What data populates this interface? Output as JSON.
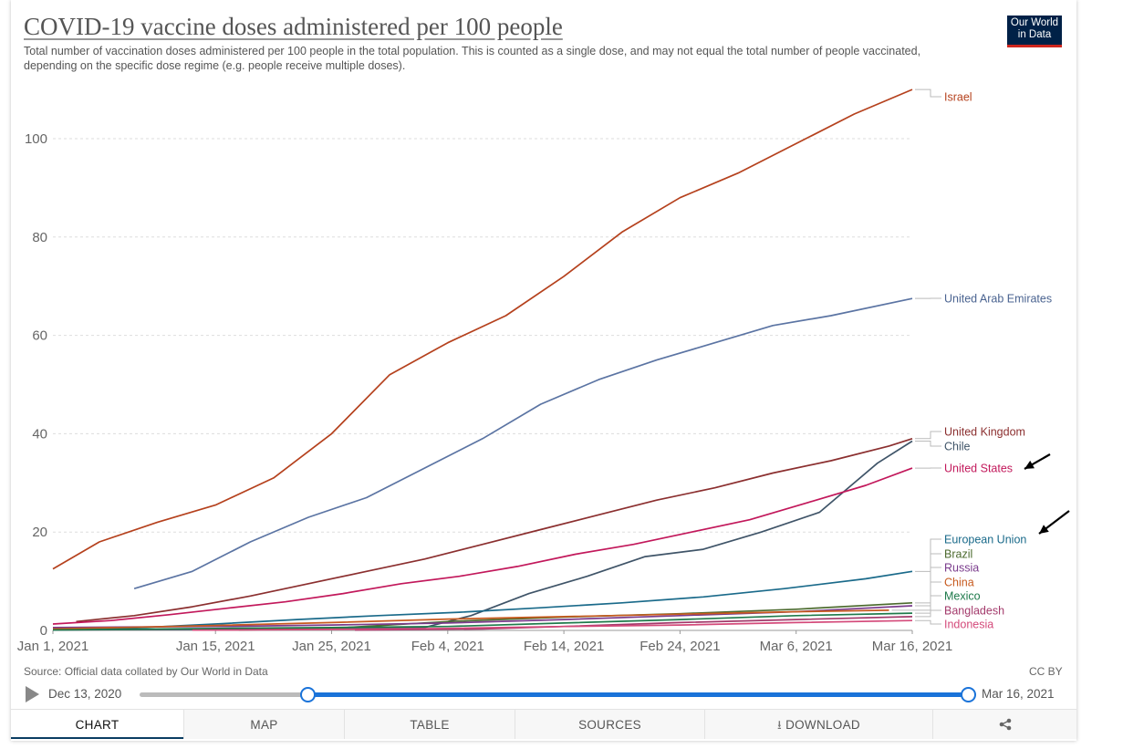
{
  "header": {
    "title": "COVID-19 vaccine doses administered per 100 people",
    "subtitle": "Total number of vaccination doses administered per 100 people in the total population. This is counted as a single dose, and may not equal the total number of people vaccinated, depending on the specific dose regime (e.g. people receive multiple doses).",
    "logo_line1": "Our World",
    "logo_line2": "in Data"
  },
  "footer": {
    "source": "Source: Official data collated by Our World in Data",
    "license": "CC BY"
  },
  "timeline": {
    "start_label": "Dec 13, 2020",
    "end_label": "Mar 16, 2021",
    "selected_start_fraction": 0.203,
    "selected_end_fraction": 1.0
  },
  "tabs": [
    "CHART",
    "MAP",
    "TABLE",
    "SOURCES",
    "DOWNLOAD",
    ""
  ],
  "active_tab": "CHART",
  "icons": {
    "download": "download-icon",
    "share": "share-icon",
    "play": "play-icon",
    "arrow": "arrow-annotation-icon"
  },
  "chart_data": {
    "type": "line",
    "title": "COVID-19 vaccine doses administered per 100 people",
    "xlabel": "",
    "ylabel": "",
    "x_ticks": [
      "Jan 1, 2021",
      "Jan 15, 2021",
      "Jan 25, 2021",
      "Feb 4, 2021",
      "Feb 14, 2021",
      "Feb 24, 2021",
      "Mar 6, 2021",
      "Mar 16, 2021"
    ],
    "xlim": [
      "2021-01-01",
      "2021-03-16"
    ],
    "ylim": [
      0,
      110
    ],
    "y_ticks": [
      0,
      20,
      40,
      60,
      80,
      100
    ],
    "grid": "horizontal dashed",
    "legend": "right-side line labels",
    "series": [
      {
        "name": "Israel",
        "color": "#b5411d",
        "points": [
          [
            "2021-01-01",
            12.5
          ],
          [
            "2021-01-05",
            18
          ],
          [
            "2021-01-10",
            22
          ],
          [
            "2021-01-15",
            25.5
          ],
          [
            "2021-01-20",
            31
          ],
          [
            "2021-01-25",
            40
          ],
          [
            "2021-01-30",
            52
          ],
          [
            "2021-02-04",
            58.5
          ],
          [
            "2021-02-09",
            64
          ],
          [
            "2021-02-14",
            72
          ],
          [
            "2021-02-19",
            81
          ],
          [
            "2021-02-24",
            88
          ],
          [
            "2021-03-01",
            93
          ],
          [
            "2021-03-06",
            99
          ],
          [
            "2021-03-11",
            105
          ],
          [
            "2021-03-16",
            110
          ]
        ]
      },
      {
        "name": "United Arab Emirates",
        "color": "#5b74a3",
        "points": [
          [
            "2021-01-08",
            8.5
          ],
          [
            "2021-01-13",
            12
          ],
          [
            "2021-01-18",
            18
          ],
          [
            "2021-01-23",
            23
          ],
          [
            "2021-01-28",
            27
          ],
          [
            "2021-02-02",
            33
          ],
          [
            "2021-02-07",
            39
          ],
          [
            "2021-02-12",
            46
          ],
          [
            "2021-02-17",
            51
          ],
          [
            "2021-02-22",
            55
          ],
          [
            "2021-02-27",
            58.5
          ],
          [
            "2021-03-04",
            62
          ],
          [
            "2021-03-09",
            64
          ],
          [
            "2021-03-16",
            67.5
          ]
        ]
      },
      {
        "name": "United Kingdom",
        "color": "#8b2f2f",
        "points": [
          [
            "2021-01-03",
            1.8
          ],
          [
            "2021-01-08",
            3
          ],
          [
            "2021-01-13",
            4.8
          ],
          [
            "2021-01-18",
            7
          ],
          [
            "2021-01-23",
            9.5
          ],
          [
            "2021-01-28",
            12
          ],
          [
            "2021-02-02",
            14.5
          ],
          [
            "2021-02-07",
            17.5
          ],
          [
            "2021-02-12",
            20.5
          ],
          [
            "2021-02-17",
            23.5
          ],
          [
            "2021-02-22",
            26.5
          ],
          [
            "2021-02-27",
            29
          ],
          [
            "2021-03-04",
            32
          ],
          [
            "2021-03-09",
            34.5
          ],
          [
            "2021-03-14",
            37.5
          ],
          [
            "2021-03-16",
            39
          ]
        ]
      },
      {
        "name": "Chile",
        "color": "#3f5468",
        "points": [
          [
            "2021-01-01",
            0.1
          ],
          [
            "2021-01-20",
            0.3
          ],
          [
            "2021-02-02",
            0.6
          ],
          [
            "2021-02-06",
            3
          ],
          [
            "2021-02-11",
            7.5
          ],
          [
            "2021-02-16",
            11
          ],
          [
            "2021-02-21",
            15
          ],
          [
            "2021-02-26",
            16.5
          ],
          [
            "2021-03-03",
            20
          ],
          [
            "2021-03-08",
            24
          ],
          [
            "2021-03-13",
            34
          ],
          [
            "2021-03-16",
            38.5
          ]
        ]
      },
      {
        "name": "United States",
        "color": "#c2185b",
        "points": [
          [
            "2021-01-01",
            1.3
          ],
          [
            "2021-01-06",
            2
          ],
          [
            "2021-01-11",
            3.2
          ],
          [
            "2021-01-16",
            4.5
          ],
          [
            "2021-01-21",
            5.8
          ],
          [
            "2021-01-26",
            7.5
          ],
          [
            "2021-01-31",
            9.5
          ],
          [
            "2021-02-05",
            11
          ],
          [
            "2021-02-10",
            13
          ],
          [
            "2021-02-15",
            15.5
          ],
          [
            "2021-02-20",
            17.5
          ],
          [
            "2021-02-25",
            20
          ],
          [
            "2021-03-02",
            22.5
          ],
          [
            "2021-03-07",
            26
          ],
          [
            "2021-03-12",
            29.5
          ],
          [
            "2021-03-16",
            33
          ]
        ]
      },
      {
        "name": "European Union",
        "color": "#1a6a8a",
        "points": [
          [
            "2021-01-01",
            0.2
          ],
          [
            "2021-01-08",
            0.5
          ],
          [
            "2021-01-15",
            1.3
          ],
          [
            "2021-01-22",
            2.2
          ],
          [
            "2021-01-29",
            3
          ],
          [
            "2021-02-05",
            3.7
          ],
          [
            "2021-02-12",
            4.6
          ],
          [
            "2021-02-19",
            5.6
          ],
          [
            "2021-02-26",
            6.8
          ],
          [
            "2021-03-05",
            8.5
          ],
          [
            "2021-03-12",
            10.5
          ],
          [
            "2021-03-16",
            12
          ]
        ]
      },
      {
        "name": "Brazil",
        "color": "#4c6a2e",
        "points": [
          [
            "2021-01-17",
            0.1
          ],
          [
            "2021-01-25",
            0.4
          ],
          [
            "2021-02-04",
            1.8
          ],
          [
            "2021-02-14",
            2.7
          ],
          [
            "2021-02-24",
            3.4
          ],
          [
            "2021-03-06",
            4.3
          ],
          [
            "2021-03-16",
            5.6
          ]
        ]
      },
      {
        "name": "Russia",
        "color": "#7a3b8c",
        "points": [
          [
            "2021-01-01",
            0.6
          ],
          [
            "2021-01-15",
            0.8
          ],
          [
            "2021-01-25",
            1.1
          ],
          [
            "2021-02-04",
            1.5
          ],
          [
            "2021-02-14",
            2.2
          ],
          [
            "2021-02-24",
            3
          ],
          [
            "2021-03-06",
            3.8
          ],
          [
            "2021-03-16",
            5
          ]
        ]
      },
      {
        "name": "China",
        "color": "#c75a1e",
        "points": [
          [
            "2021-01-01",
            0.3
          ],
          [
            "2021-01-15",
            1
          ],
          [
            "2021-01-25",
            1.6
          ],
          [
            "2021-02-04",
            2.3
          ],
          [
            "2021-02-14",
            2.8
          ],
          [
            "2021-02-24",
            3.3
          ],
          [
            "2021-03-06",
            3.8
          ],
          [
            "2021-03-14",
            4.1
          ]
        ]
      },
      {
        "name": "Mexico",
        "color": "#1e7a4b",
        "points": [
          [
            "2021-01-01",
            0.1
          ],
          [
            "2021-01-15",
            0.4
          ],
          [
            "2021-01-25",
            0.6
          ],
          [
            "2021-02-04",
            0.8
          ],
          [
            "2021-02-14",
            1.5
          ],
          [
            "2021-02-24",
            2.2
          ],
          [
            "2021-03-06",
            3
          ],
          [
            "2021-03-16",
            3.5
          ]
        ]
      },
      {
        "name": "Bangladesh",
        "color": "#a33a6b",
        "points": [
          [
            "2021-01-27",
            0.05
          ],
          [
            "2021-02-07",
            0.3
          ],
          [
            "2021-02-14",
            0.8
          ],
          [
            "2021-02-24",
            1.6
          ],
          [
            "2021-03-06",
            2.2
          ],
          [
            "2021-03-16",
            2.8
          ]
        ]
      },
      {
        "name": "Indonesia",
        "color": "#d44a7a",
        "points": [
          [
            "2021-01-13",
            0.05
          ],
          [
            "2021-01-25",
            0.2
          ],
          [
            "2021-02-04",
            0.4
          ],
          [
            "2021-02-14",
            0.8
          ],
          [
            "2021-02-24",
            1.1
          ],
          [
            "2021-03-06",
            1.6
          ],
          [
            "2021-03-16",
            2
          ]
        ]
      }
    ]
  }
}
